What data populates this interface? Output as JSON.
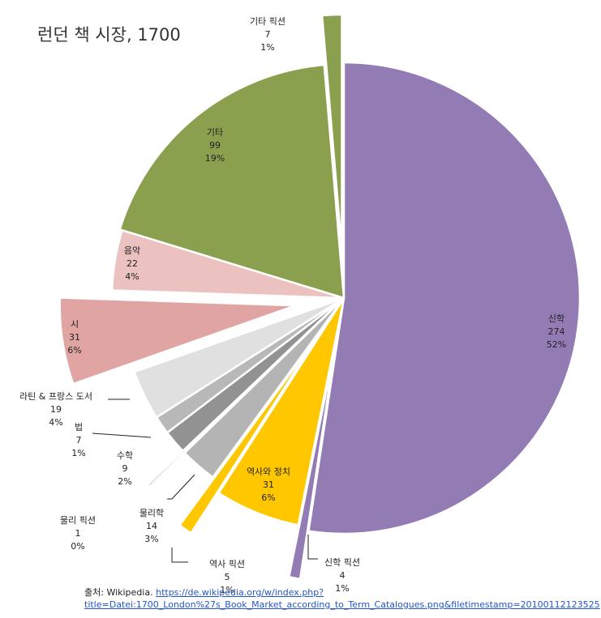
{
  "chart_data": {
    "type": "pie",
    "title": "런던 책 시장, 1700",
    "slices": [
      {
        "label": "신학",
        "value": 274,
        "percent": "52%",
        "color": "#937bb4",
        "exploded": false
      },
      {
        "label": "신학 픽션",
        "value": 4,
        "percent": "1%",
        "color": "#937bb4",
        "exploded": true
      },
      {
        "label": "역사와 정치",
        "value": 31,
        "percent": "6%",
        "color": "#ffc700",
        "exploded": false
      },
      {
        "label": "역사 픽션",
        "value": 5,
        "percent": "1%",
        "color": "#ffc700",
        "exploded": true
      },
      {
        "label": "물리학",
        "value": 14,
        "percent": "3%",
        "color": "#b4b4b4",
        "exploded": false
      },
      {
        "label": "물리 픽션",
        "value": 1,
        "percent": "0%",
        "color": "#b4b4b4",
        "exploded": true
      },
      {
        "label": "수학",
        "value": 9,
        "percent": "2%",
        "color": "#929292",
        "exploded": false
      },
      {
        "label": "법",
        "value": 7,
        "percent": "1%",
        "color": "#b8b8b8",
        "exploded": false
      },
      {
        "label": "라틴 & 프랑스 도서",
        "value": 19,
        "percent": "4%",
        "color": "#e0e0e0",
        "exploded": false
      },
      {
        "label": "시",
        "value": 31,
        "percent": "6%",
        "color": "#e0a5a3",
        "exploded": true
      },
      {
        "label": "음악",
        "value": 22,
        "percent": "4%",
        "color": "#ecc2c0",
        "exploded": false
      },
      {
        "label": "기타",
        "value": 99,
        "percent": "19%",
        "color": "#8ba04f",
        "exploded": false
      },
      {
        "label": "기타 픽션",
        "value": 7,
        "percent": "1%",
        "color": "#8ba04f",
        "exploded": true
      }
    ]
  },
  "source": {
    "prefix": "출처: Wikipedia. ",
    "url": "https://de.wikipedia.org/w/index.php?title=Datei:1700_London%27s_Book_Market_according_to_Term_Catalogues.png&filetimestamp=20100112123525"
  }
}
